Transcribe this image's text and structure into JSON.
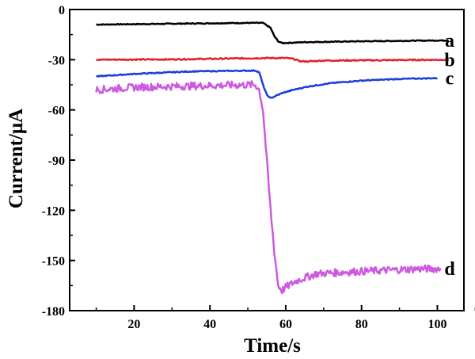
{
  "chart_data": {
    "type": "line",
    "xlabel": "Time/s",
    "ylabel": "Current/μA",
    "xlim": [
      3,
      107
    ],
    "ylim": [
      -180,
      0
    ],
    "xticks": [
      20,
      40,
      60,
      80,
      100
    ],
    "yticks": [
      0,
      -30,
      -60,
      -90,
      -120,
      -150,
      -180
    ],
    "grid": false,
    "series": [
      {
        "name": "a",
        "color": "#000000",
        "noise": 0.25,
        "points": [
          [
            10,
            -9
          ],
          [
            30,
            -8.5
          ],
          [
            50,
            -8
          ],
          [
            54,
            -8
          ],
          [
            56,
            -11
          ],
          [
            57,
            -16
          ],
          [
            58,
            -19
          ],
          [
            59,
            -20
          ],
          [
            60,
            -20
          ],
          [
            65,
            -19.5
          ],
          [
            80,
            -19
          ],
          [
            100,
            -18.5
          ],
          [
            103,
            -18.5
          ]
        ]
      },
      {
        "name": "b",
        "color": "#e0212e",
        "noise": 0.35,
        "points": [
          [
            10,
            -30
          ],
          [
            30,
            -29.8
          ],
          [
            55,
            -29
          ],
          [
            60,
            -29
          ],
          [
            62,
            -29.5
          ],
          [
            64,
            -31
          ],
          [
            66,
            -31
          ],
          [
            70,
            -30.5
          ],
          [
            85,
            -30.3
          ],
          [
            103,
            -30
          ]
        ]
      },
      {
        "name": "c",
        "color": "#1c3fd6",
        "noise": 0.3,
        "points": [
          [
            10,
            -40
          ],
          [
            20,
            -38.5
          ],
          [
            35,
            -37
          ],
          [
            52,
            -36.5
          ],
          [
            53,
            -37.5
          ],
          [
            54,
            -45
          ],
          [
            55,
            -51
          ],
          [
            56,
            -53
          ],
          [
            57,
            -52
          ],
          [
            59,
            -50
          ],
          [
            62,
            -48
          ],
          [
            66,
            -46
          ],
          [
            72,
            -44
          ],
          [
            80,
            -42.5
          ],
          [
            90,
            -41.5
          ],
          [
            100,
            -41
          ]
        ]
      },
      {
        "name": "d",
        "color": "#cc5ae0",
        "noise": 2.2,
        "points": [
          [
            10,
            -48
          ],
          [
            20,
            -46.5
          ],
          [
            30,
            -46
          ],
          [
            40,
            -45.5
          ],
          [
            50,
            -45
          ],
          [
            52,
            -45
          ],
          [
            53,
            -48
          ],
          [
            54,
            -60
          ],
          [
            55,
            -90
          ],
          [
            56,
            -120
          ],
          [
            57,
            -145
          ],
          [
            58,
            -165
          ],
          [
            59,
            -168
          ],
          [
            60,
            -166
          ],
          [
            63,
            -162
          ],
          [
            68,
            -158
          ],
          [
            75,
            -157
          ],
          [
            85,
            -156
          ],
          [
            95,
            -155
          ],
          [
            101,
            -155
          ]
        ]
      }
    ]
  }
}
